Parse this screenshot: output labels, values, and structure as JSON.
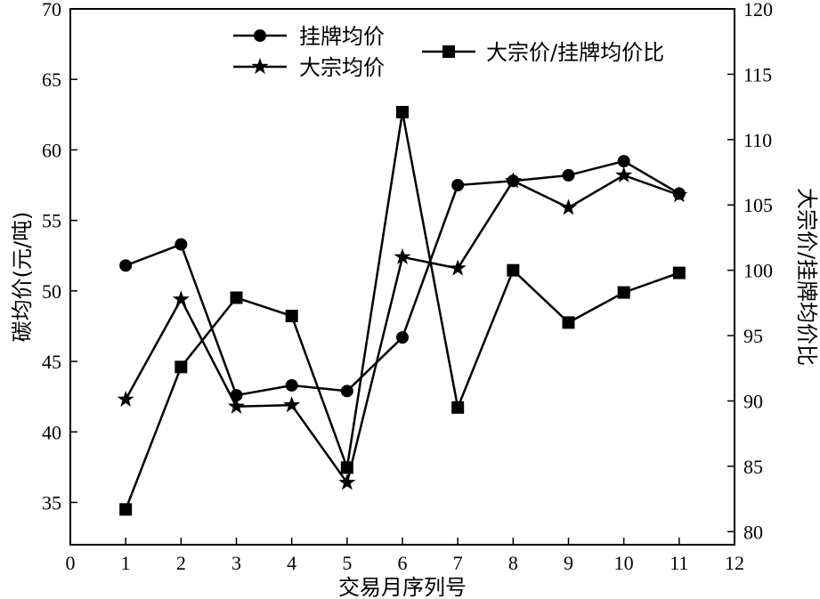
{
  "chart_data": {
    "type": "line",
    "title": "",
    "xlabel": "交易月序列号",
    "ylabel_left": "碳均价(元/吨)",
    "ylabel_right": "大宗价/挂牌均价比",
    "xlim": [
      0,
      12
    ],
    "ylim_left": [
      32,
      70
    ],
    "ylim_right": [
      79,
      120
    ],
    "x_ticks": [
      0,
      1,
      2,
      3,
      4,
      5,
      6,
      7,
      8,
      9,
      10,
      11,
      12
    ],
    "y_left_ticks": [
      35,
      40,
      45,
      50,
      55,
      60,
      65,
      70
    ],
    "y_right_ticks": [
      80,
      85,
      90,
      95,
      100,
      105,
      110,
      115,
      120
    ],
    "grid": false,
    "legend_position": "top",
    "x": [
      1,
      2,
      3,
      4,
      5,
      6,
      7,
      8,
      9,
      10,
      11
    ],
    "series": [
      {
        "name": "挂牌均价",
        "axis": "left",
        "marker": "circle",
        "values": [
          51.8,
          53.3,
          42.6,
          43.3,
          42.9,
          46.7,
          57.5,
          57.8,
          58.2,
          59.2,
          56.9
        ]
      },
      {
        "name": "大宗均价",
        "axis": "left",
        "marker": "star",
        "values": [
          42.3,
          49.4,
          41.8,
          41.9,
          36.4,
          52.4,
          51.6,
          57.8,
          55.9,
          58.2,
          56.8
        ]
      },
      {
        "name": "大宗价/挂牌均价比",
        "axis": "right",
        "marker": "square",
        "values": [
          81.7,
          92.6,
          97.9,
          96.5,
          84.9,
          112.1,
          89.5,
          100.0,
          96.0,
          98.3,
          99.8
        ]
      }
    ]
  }
}
